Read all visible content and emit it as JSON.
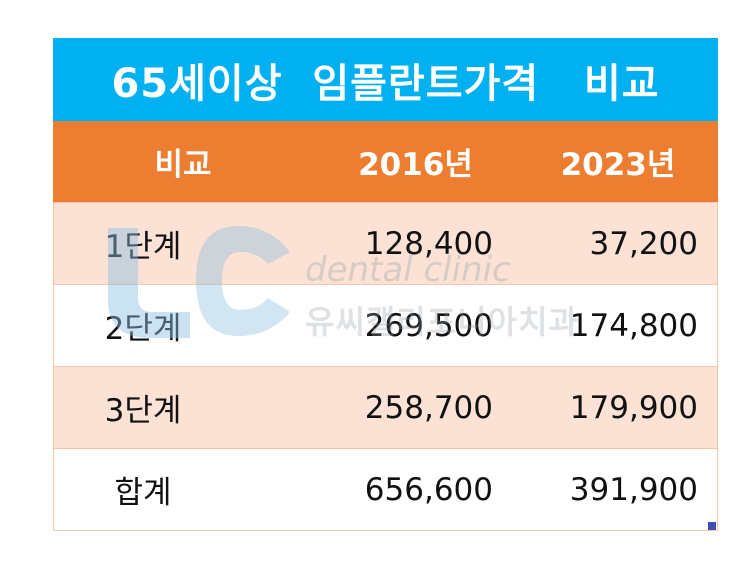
{
  "title": "65세이상  임플란트가격   비교",
  "header": {
    "col1": "비교",
    "col2": "2016년",
    "col3": "2023년"
  },
  "rows": [
    {
      "label": "1단계",
      "y2016": "128,400",
      "y2023": "37,200"
    },
    {
      "label": "2단계",
      "y2016": "269,500",
      "y2023": "174,800"
    },
    {
      "label": "3단계",
      "y2016": "258,700",
      "y2023": "179,900"
    },
    {
      "label": "합계",
      "y2016": "656,600",
      "y2023": "391,900"
    }
  ],
  "watermark": {
    "line1": "dental clinic",
    "line2": "유씨캘리포니아치과"
  },
  "colors": {
    "title_bg": "#00b0f0",
    "header_bg": "#ed7d31",
    "shaded_row": "#fbe2d5",
    "watermark_logo": "#a9cbe6"
  }
}
